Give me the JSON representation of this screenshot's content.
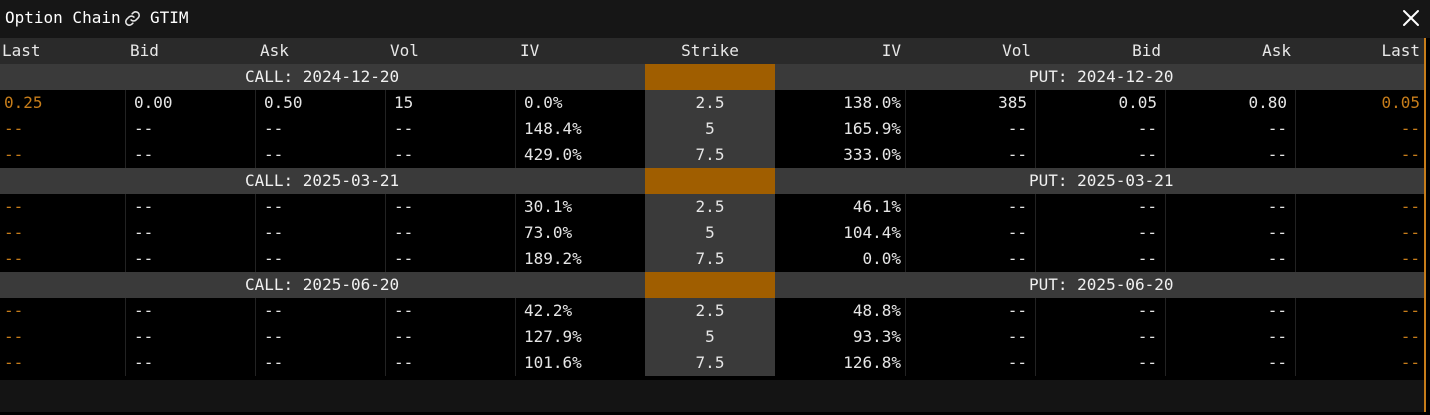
{
  "window": {
    "title": "Option Chain",
    "symbol": "GTIM",
    "accent_color": "#c77d1a",
    "strike_accent_color": "#a05e00"
  },
  "columns": [
    "Last",
    "Bid",
    "Ask",
    "Vol",
    "IV",
    "Strike",
    "IV",
    "Vol",
    "Bid",
    "Ask",
    "Last"
  ],
  "groups": [
    {
      "call_label": "CALL: 2024-12-20",
      "put_label": "PUT: 2024-12-20",
      "rows": [
        {
          "call": [
            "0.25",
            "0.00",
            "0.50",
            "15",
            "0.0%"
          ],
          "strike": "2.5",
          "put": [
            "138.0%",
            "385",
            "0.05",
            "0.80",
            "0.05"
          ]
        },
        {
          "call": [
            "--",
            "--",
            "--",
            "--",
            "148.4%"
          ],
          "strike": "5",
          "put": [
            "165.9%",
            "--",
            "--",
            "--",
            "--"
          ]
        },
        {
          "call": [
            "--",
            "--",
            "--",
            "--",
            "429.0%"
          ],
          "strike": "7.5",
          "put": [
            "333.0%",
            "--",
            "--",
            "--",
            "--"
          ]
        }
      ]
    },
    {
      "call_label": "CALL: 2025-03-21",
      "put_label": "PUT: 2025-03-21",
      "rows": [
        {
          "call": [
            "--",
            "--",
            "--",
            "--",
            "30.1%"
          ],
          "strike": "2.5",
          "put": [
            "46.1%",
            "--",
            "--",
            "--",
            "--"
          ]
        },
        {
          "call": [
            "--",
            "--",
            "--",
            "--",
            "73.0%"
          ],
          "strike": "5",
          "put": [
            "104.4%",
            "--",
            "--",
            "--",
            "--"
          ]
        },
        {
          "call": [
            "--",
            "--",
            "--",
            "--",
            "189.2%"
          ],
          "strike": "7.5",
          "put": [
            "0.0%",
            "--",
            "--",
            "--",
            "--"
          ]
        }
      ]
    },
    {
      "call_label": "CALL: 2025-06-20",
      "put_label": "PUT: 2025-06-20",
      "rows": [
        {
          "call": [
            "--",
            "--",
            "--",
            "--",
            "42.2%"
          ],
          "strike": "2.5",
          "put": [
            "48.8%",
            "--",
            "--",
            "--",
            "--"
          ]
        },
        {
          "call": [
            "--",
            "--",
            "--",
            "--",
            "127.9%"
          ],
          "strike": "5",
          "put": [
            "93.3%",
            "--",
            "--",
            "--",
            "--"
          ]
        },
        {
          "call": [
            "--",
            "--",
            "--",
            "--",
            "101.6%"
          ],
          "strike": "7.5",
          "put": [
            "126.8%",
            "--",
            "--",
            "--",
            "--"
          ]
        }
      ]
    }
  ]
}
